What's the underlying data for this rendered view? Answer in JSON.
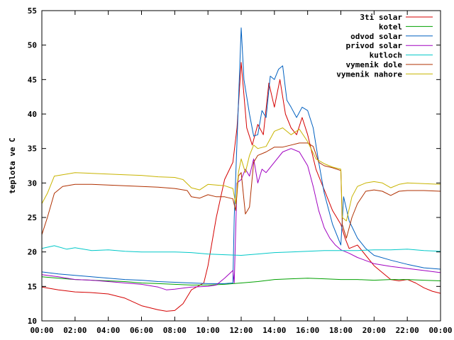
{
  "chart_data": {
    "type": "line",
    "title": "",
    "xlabel": "",
    "ylabel": "teplota ve C",
    "xlim": [
      "00:00",
      "24:00"
    ],
    "ylim": [
      10,
      55
    ],
    "grid": false,
    "legend_position": "top-right",
    "x_tick_labels": [
      "00:00",
      "02:00",
      "04:00",
      "06:00",
      "08:00",
      "10:00",
      "12:00",
      "14:00",
      "16:00",
      "18:00",
      "20:00",
      "22:00",
      "00:00"
    ],
    "y_tick_labels": [
      "10",
      "15",
      "20",
      "25",
      "30",
      "35",
      "40",
      "45",
      "50",
      "55"
    ],
    "series": [
      {
        "name": "3ti solar",
        "color": "#d40000",
        "points": [
          [
            "00:00",
            14.9
          ],
          [
            "01:00",
            14.5
          ],
          [
            "02:00",
            14.2
          ],
          [
            "03:00",
            14.1
          ],
          [
            "04:00",
            13.9
          ],
          [
            "05:00",
            13.3
          ],
          [
            "06:00",
            12.2
          ],
          [
            "07:00",
            11.6
          ],
          [
            "07:30",
            11.4
          ],
          [
            "08:00",
            11.5
          ],
          [
            "08:30",
            12.5
          ],
          [
            "09:00",
            14.5
          ],
          [
            "09:45",
            15.5
          ],
          [
            "10:00",
            18.0
          ],
          [
            "10:30",
            25.0
          ],
          [
            "11:00",
            30.5
          ],
          [
            "11:30",
            33.0
          ],
          [
            "11:45",
            38.0
          ],
          [
            "12:00",
            47.5
          ],
          [
            "12:20",
            38.0
          ],
          [
            "12:40",
            35.5
          ],
          [
            "13:00",
            38.5
          ],
          [
            "13:20",
            37.0
          ],
          [
            "13:40",
            44.5
          ],
          [
            "14:00",
            41.0
          ],
          [
            "14:20",
            45.0
          ],
          [
            "14:40",
            40.0
          ],
          [
            "15:00",
            38.0
          ],
          [
            "15:20",
            37.0
          ],
          [
            "15:40",
            39.5
          ],
          [
            "16:00",
            37.0
          ],
          [
            "16:30",
            32.0
          ],
          [
            "17:00",
            29.0
          ],
          [
            "17:30",
            26.0
          ],
          [
            "18:00",
            24.0
          ],
          [
            "18:15",
            22.0
          ],
          [
            "18:30",
            20.5
          ],
          [
            "19:00",
            21.0
          ],
          [
            "19:30",
            19.5
          ],
          [
            "20:00",
            18.0
          ],
          [
            "20:30",
            17.0
          ],
          [
            "21:00",
            16.0
          ],
          [
            "21:30",
            15.8
          ],
          [
            "22:00",
            16.0
          ],
          [
            "22:30",
            15.5
          ],
          [
            "23:00",
            14.8
          ],
          [
            "23:30",
            14.3
          ],
          [
            "24:00",
            14.0
          ]
        ]
      },
      {
        "name": "kotel",
        "color": "#00a000",
        "points": [
          [
            "00:00",
            16.4
          ],
          [
            "01:00",
            16.2
          ],
          [
            "02:00",
            16.0
          ],
          [
            "03:00",
            15.9
          ],
          [
            "04:00",
            15.8
          ],
          [
            "05:00",
            15.7
          ],
          [
            "06:00",
            15.5
          ],
          [
            "07:00",
            15.4
          ],
          [
            "08:00",
            15.3
          ],
          [
            "09:00",
            15.2
          ],
          [
            "10:00",
            15.2
          ],
          [
            "11:00",
            15.3
          ],
          [
            "12:00",
            15.5
          ],
          [
            "13:00",
            15.7
          ],
          [
            "14:00",
            16.0
          ],
          [
            "15:00",
            16.1
          ],
          [
            "16:00",
            16.2
          ],
          [
            "17:00",
            16.1
          ],
          [
            "18:00",
            16.0
          ],
          [
            "19:00",
            16.0
          ],
          [
            "20:00",
            15.9
          ],
          [
            "21:00",
            16.0
          ],
          [
            "22:00",
            16.0
          ],
          [
            "23:00",
            15.9
          ],
          [
            "24:00",
            15.8
          ]
        ]
      },
      {
        "name": "odvod solar",
        "color": "#0060c0",
        "points": [
          [
            "00:00",
            17.1
          ],
          [
            "01:00",
            16.8
          ],
          [
            "02:00",
            16.6
          ],
          [
            "03:00",
            16.4
          ],
          [
            "04:00",
            16.2
          ],
          [
            "05:00",
            16.0
          ],
          [
            "06:00",
            15.9
          ],
          [
            "07:00",
            15.7
          ],
          [
            "08:00",
            15.6
          ],
          [
            "09:00",
            15.5
          ],
          [
            "10:00",
            15.4
          ],
          [
            "11:00",
            15.4
          ],
          [
            "11:30",
            15.5
          ],
          [
            "11:35",
            25.0
          ],
          [
            "11:45",
            36.0
          ],
          [
            "12:00",
            52.5
          ],
          [
            "12:10",
            45.0
          ],
          [
            "12:30",
            40.0
          ],
          [
            "12:45",
            36.8
          ],
          [
            "13:00",
            37.0
          ],
          [
            "13:15",
            40.5
          ],
          [
            "13:30",
            39.5
          ],
          [
            "13:45",
            45.5
          ],
          [
            "14:00",
            45.0
          ],
          [
            "14:15",
            46.5
          ],
          [
            "14:30",
            47.0
          ],
          [
            "14:45",
            42.0
          ],
          [
            "15:00",
            41.0
          ],
          [
            "15:20",
            39.5
          ],
          [
            "15:40",
            41.0
          ],
          [
            "16:00",
            40.5
          ],
          [
            "16:20",
            38.0
          ],
          [
            "16:40",
            33.0
          ],
          [
            "17:00",
            28.5
          ],
          [
            "17:30",
            24.0
          ],
          [
            "18:00",
            21.0
          ],
          [
            "18:10",
            28.0
          ],
          [
            "18:30",
            24.5
          ],
          [
            "19:00",
            22.0
          ],
          [
            "19:30",
            20.5
          ],
          [
            "20:00",
            19.5
          ],
          [
            "21:00",
            18.8
          ],
          [
            "22:00",
            18.2
          ],
          [
            "23:00",
            17.7
          ],
          [
            "24:00",
            17.5
          ]
        ]
      },
      {
        "name": "privod solar",
        "color": "#a000c0",
        "points": [
          [
            "00:00",
            16.7
          ],
          [
            "01:00",
            16.4
          ],
          [
            "02:00",
            16.0
          ],
          [
            "03:00",
            15.9
          ],
          [
            "04:00",
            15.7
          ],
          [
            "05:00",
            15.5
          ],
          [
            "06:00",
            15.3
          ],
          [
            "07:00",
            14.9
          ],
          [
            "07:30",
            14.5
          ],
          [
            "08:00",
            14.6
          ],
          [
            "09:00",
            14.9
          ],
          [
            "10:00",
            15.0
          ],
          [
            "10:30",
            15.2
          ],
          [
            "11:00",
            16.2
          ],
          [
            "11:30",
            17.3
          ],
          [
            "11:35",
            15.5
          ],
          [
            "11:45",
            30.0
          ],
          [
            "12:00",
            30.5
          ],
          [
            "12:15",
            32.0
          ],
          [
            "12:30",
            31.0
          ],
          [
            "12:45",
            33.5
          ],
          [
            "13:00",
            30.0
          ],
          [
            "13:15",
            32.0
          ],
          [
            "13:30",
            31.5
          ],
          [
            "14:00",
            33.0
          ],
          [
            "14:30",
            34.5
          ],
          [
            "15:00",
            35.0
          ],
          [
            "15:30",
            34.5
          ],
          [
            "16:00",
            32.5
          ],
          [
            "16:20",
            29.5
          ],
          [
            "16:40",
            26.0
          ],
          [
            "17:00",
            23.5
          ],
          [
            "17:20",
            22.0
          ],
          [
            "17:40",
            21.0
          ],
          [
            "18:00",
            20.3
          ],
          [
            "18:30",
            19.8
          ],
          [
            "19:00",
            19.2
          ],
          [
            "20:00",
            18.3
          ],
          [
            "21:00",
            17.9
          ],
          [
            "22:00",
            17.6
          ],
          [
            "23:00",
            17.3
          ],
          [
            "24:00",
            17.0
          ]
        ]
      },
      {
        "name": "kutloch",
        "color": "#00c8c8",
        "points": [
          [
            "00:00",
            20.5
          ],
          [
            "00:45",
            20.9
          ],
          [
            "01:30",
            20.4
          ],
          [
            "02:00",
            20.6
          ],
          [
            "03:00",
            20.2
          ],
          [
            "04:00",
            20.3
          ],
          [
            "05:00",
            20.1
          ],
          [
            "06:00",
            20.0
          ],
          [
            "07:00",
            20.0
          ],
          [
            "08:00",
            20.0
          ],
          [
            "09:00",
            19.9
          ],
          [
            "10:00",
            19.7
          ],
          [
            "11:00",
            19.6
          ],
          [
            "12:00",
            19.5
          ],
          [
            "13:00",
            19.7
          ],
          [
            "14:00",
            19.9
          ],
          [
            "15:00",
            20.0
          ],
          [
            "16:00",
            20.1
          ],
          [
            "17:00",
            20.2
          ],
          [
            "18:00",
            20.2
          ],
          [
            "19:00",
            20.2
          ],
          [
            "20:00",
            20.3
          ],
          [
            "21:00",
            20.3
          ],
          [
            "22:00",
            20.4
          ],
          [
            "23:00",
            20.2
          ],
          [
            "24:00",
            20.1
          ]
        ]
      },
      {
        "name": "vymenik dole",
        "color": "#b03000",
        "points": [
          [
            "00:00",
            22.5
          ],
          [
            "00:20",
            25.0
          ],
          [
            "00:45",
            28.5
          ],
          [
            "01:15",
            29.5
          ],
          [
            "02:00",
            29.8
          ],
          [
            "03:00",
            29.8
          ],
          [
            "04:00",
            29.7
          ],
          [
            "05:00",
            29.6
          ],
          [
            "06:00",
            29.5
          ],
          [
            "07:00",
            29.4
          ],
          [
            "08:00",
            29.2
          ],
          [
            "08:45",
            28.9
          ],
          [
            "09:00",
            28.0
          ],
          [
            "09:30",
            27.8
          ],
          [
            "10:00",
            28.3
          ],
          [
            "10:30",
            28.0
          ],
          [
            "11:00",
            28.0
          ],
          [
            "11:30",
            27.7
          ],
          [
            "11:40",
            26.0
          ],
          [
            "11:50",
            31.0
          ],
          [
            "12:00",
            31.5
          ],
          [
            "12:15",
            25.5
          ],
          [
            "12:30",
            26.5
          ],
          [
            "12:45",
            33.0
          ],
          [
            "13:00",
            34.0
          ],
          [
            "13:30",
            34.5
          ],
          [
            "14:00",
            35.2
          ],
          [
            "14:30",
            35.2
          ],
          [
            "15:00",
            35.5
          ],
          [
            "15:30",
            35.8
          ],
          [
            "16:00",
            35.8
          ],
          [
            "16:20",
            35.3
          ],
          [
            "16:40",
            33.0
          ],
          [
            "17:00",
            32.5
          ],
          [
            "17:30",
            32.2
          ],
          [
            "18:00",
            31.8
          ],
          [
            "18:05",
            24.0
          ],
          [
            "18:20",
            22.0
          ],
          [
            "18:40",
            25.0
          ],
          [
            "19:00",
            27.0
          ],
          [
            "19:30",
            28.8
          ],
          [
            "20:00",
            29.0
          ],
          [
            "20:30",
            28.8
          ],
          [
            "21:00",
            28.2
          ],
          [
            "21:30",
            28.8
          ],
          [
            "22:00",
            28.9
          ],
          [
            "23:00",
            28.9
          ],
          [
            "24:00",
            28.8
          ]
        ]
      },
      {
        "name": "vymenik nahore",
        "color": "#c8b400",
        "points": [
          [
            "00:00",
            27.0
          ],
          [
            "00:20",
            28.5
          ],
          [
            "00:45",
            31.0
          ],
          [
            "01:30",
            31.3
          ],
          [
            "02:00",
            31.5
          ],
          [
            "03:00",
            31.4
          ],
          [
            "04:00",
            31.3
          ],
          [
            "05:00",
            31.2
          ],
          [
            "06:00",
            31.1
          ],
          [
            "07:00",
            30.9
          ],
          [
            "08:00",
            30.8
          ],
          [
            "08:30",
            30.5
          ],
          [
            "09:00",
            29.3
          ],
          [
            "09:30",
            29.0
          ],
          [
            "10:00",
            29.8
          ],
          [
            "11:00",
            29.6
          ],
          [
            "11:30",
            29.2
          ],
          [
            "11:40",
            27.0
          ],
          [
            "11:50",
            31.5
          ],
          [
            "12:00",
            33.5
          ],
          [
            "12:15",
            31.5
          ],
          [
            "12:30",
            34.0
          ],
          [
            "12:45",
            35.5
          ],
          [
            "13:00",
            35.0
          ],
          [
            "13:30",
            35.3
          ],
          [
            "14:00",
            37.5
          ],
          [
            "14:30",
            38.0
          ],
          [
            "15:00",
            37.0
          ],
          [
            "15:30",
            37.8
          ],
          [
            "16:00",
            36.0
          ],
          [
            "16:30",
            33.5
          ],
          [
            "17:00",
            32.8
          ],
          [
            "17:30",
            32.3
          ],
          [
            "18:00",
            32.0
          ],
          [
            "18:05",
            25.0
          ],
          [
            "18:20",
            24.5
          ],
          [
            "18:40",
            28.0
          ],
          [
            "19:00",
            29.5
          ],
          [
            "19:30",
            30.0
          ],
          [
            "20:00",
            30.2
          ],
          [
            "20:30",
            30.0
          ],
          [
            "21:00",
            29.3
          ],
          [
            "21:30",
            29.8
          ],
          [
            "22:00",
            30.0
          ],
          [
            "23:00",
            29.9
          ],
          [
            "24:00",
            29.8
          ]
        ]
      }
    ]
  }
}
